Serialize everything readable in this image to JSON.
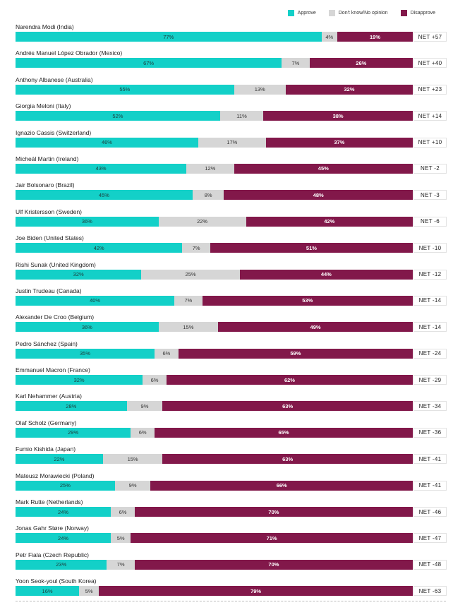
{
  "legend": {
    "approve_label": "Approve",
    "dk_label": "Don't know/No opinion",
    "disapprove_label": "Disapprove"
  },
  "colors": {
    "approve": "#13d0c8",
    "dk": "#d6d6d6",
    "disapprove": "#82184a"
  },
  "chart_data": {
    "type": "bar",
    "orientation": "horizontal",
    "stacked": true,
    "legend_position": "top-right",
    "series_names": [
      "Approve",
      "Don't know/No opinion",
      "Disapprove"
    ],
    "rows": [
      {
        "label": "Narendra Modi (India)",
        "approve": 77,
        "dk": 4,
        "disapprove": 19,
        "net": "NET +57"
      },
      {
        "label": "Andrés Manuel López Obrador (Mexico)",
        "approve": 67,
        "dk": 7,
        "disapprove": 26,
        "net": "NET +40"
      },
      {
        "label": "Anthony Albanese (Australia)",
        "approve": 55,
        "dk": 13,
        "disapprove": 32,
        "net": "NET +23"
      },
      {
        "label": "Giorgia Meloni (Italy)",
        "approve": 52,
        "dk": 11,
        "disapprove": 38,
        "net": "NET +14"
      },
      {
        "label": "Ignazio Cassis (Switzerland)",
        "approve": 46,
        "dk": 17,
        "disapprove": 37,
        "net": "NET +10"
      },
      {
        "label": "Micheál Martin (Ireland)",
        "approve": 43,
        "dk": 12,
        "disapprove": 45,
        "net": "NET -2"
      },
      {
        "label": "Jair Bolsonaro (Brazil)",
        "approve": 45,
        "dk": 8,
        "disapprove": 48,
        "net": "NET -3"
      },
      {
        "label": "Ulf Kristersson (Sweden)",
        "approve": 36,
        "dk": 22,
        "disapprove": 42,
        "net": "NET -6"
      },
      {
        "label": "Joe Biden (United States)",
        "approve": 42,
        "dk": 7,
        "disapprove": 51,
        "net": "NET -10"
      },
      {
        "label": "Rishi Sunak (United Kingdom)",
        "approve": 32,
        "dk": 25,
        "disapprove": 44,
        "net": "NET -12"
      },
      {
        "label": "Justin Trudeau (Canada)",
        "approve": 40,
        "dk": 7,
        "disapprove": 53,
        "net": "NET -14"
      },
      {
        "label": "Alexander De Croo (Belgium)",
        "approve": 36,
        "dk": 15,
        "disapprove": 49,
        "net": "NET -14"
      },
      {
        "label": "Pedro Sánchez (Spain)",
        "approve": 35,
        "dk": 6,
        "disapprove": 59,
        "net": "NET -24"
      },
      {
        "label": "Emmanuel Macron (France)",
        "approve": 32,
        "dk": 6,
        "disapprove": 62,
        "net": "NET -29"
      },
      {
        "label": "Karl Nehammer (Austria)",
        "approve": 28,
        "dk": 9,
        "disapprove": 63,
        "net": "NET -34"
      },
      {
        "label": "Olaf Scholz (Germany)",
        "approve": 29,
        "dk": 6,
        "disapprove": 65,
        "net": "NET -36"
      },
      {
        "label": "Fumio Kishida (Japan)",
        "approve": 22,
        "dk": 15,
        "disapprove": 63,
        "net": "NET -41"
      },
      {
        "label": "Mateusz Morawiecki (Poland)",
        "approve": 25,
        "dk": 9,
        "disapprove": 66,
        "net": "NET -41"
      },
      {
        "label": "Mark Rutte (Netherlands)",
        "approve": 24,
        "dk": 6,
        "disapprove": 70,
        "net": "NET -46"
      },
      {
        "label": "Jonas Gahr Støre (Norway)",
        "approve": 24,
        "dk": 5,
        "disapprove": 71,
        "net": "NET -47"
      },
      {
        "label": "Petr Fiala (Czech Republic)",
        "approve": 23,
        "dk": 7,
        "disapprove": 70,
        "net": "NET -48"
      },
      {
        "label": "Yoon Seok-youl (South Korea)",
        "approve": 16,
        "dk": 5,
        "disapprove": 79,
        "net": "NET -63"
      }
    ]
  }
}
